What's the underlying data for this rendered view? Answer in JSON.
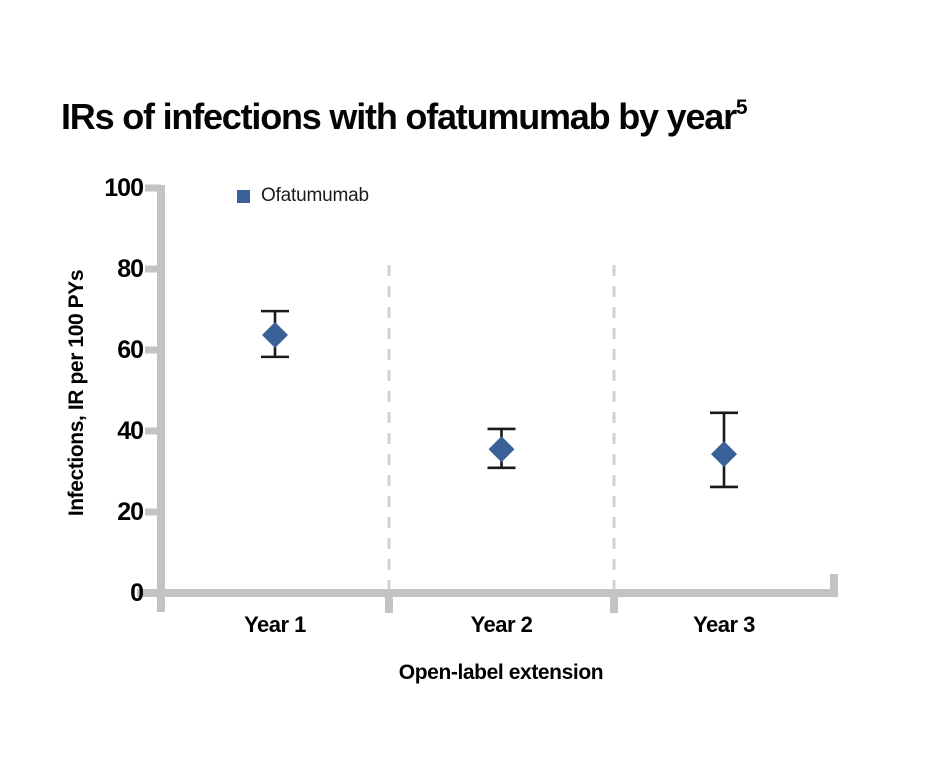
{
  "chart_data": {
    "type": "scatter",
    "marker": "diamond",
    "title": "IRs of infections with ofatumumab by year",
    "title_superscript": "5",
    "categories": [
      "Year 1",
      "Year 2",
      "Year 3"
    ],
    "series": [
      {
        "name": "Ofatumumab",
        "values": [
          63.7,
          35.5,
          34.3
        ],
        "whisker_low": [
          58.3,
          30.9,
          26.2
        ],
        "whisker_high": [
          69.6,
          40.5,
          44.5
        ]
      }
    ],
    "xlabel": "Open-label extension",
    "ylabel": "Infections, IR per 100 PYs",
    "ylim": [
      0,
      100
    ],
    "y_ticks": [
      0,
      20,
      40,
      60,
      80,
      100
    ],
    "grid": false,
    "legend_position": "inside-top-left",
    "separators": "dashed vertical lines between year segments",
    "colors": {
      "marker": "#3A6299",
      "error_bar": "#1A1A1A",
      "axis": "#C3C3C3",
      "separator": "#D2D2D2",
      "text": "#000000"
    }
  }
}
